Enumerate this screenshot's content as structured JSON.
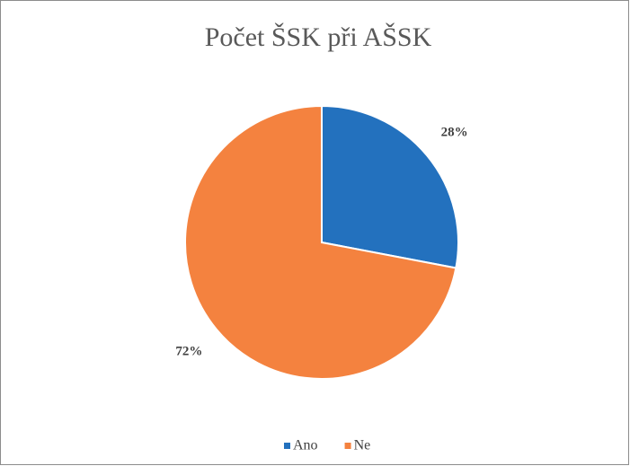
{
  "chart_data": {
    "type": "pie",
    "title": "Počet ŠSK při AŠSK",
    "categories": [
      "Ano",
      "Ne"
    ],
    "values": [
      28,
      72
    ],
    "value_labels": [
      "28%",
      "72%"
    ],
    "colors": [
      "#2371be",
      "#f4823f"
    ],
    "legend": "bottom"
  }
}
